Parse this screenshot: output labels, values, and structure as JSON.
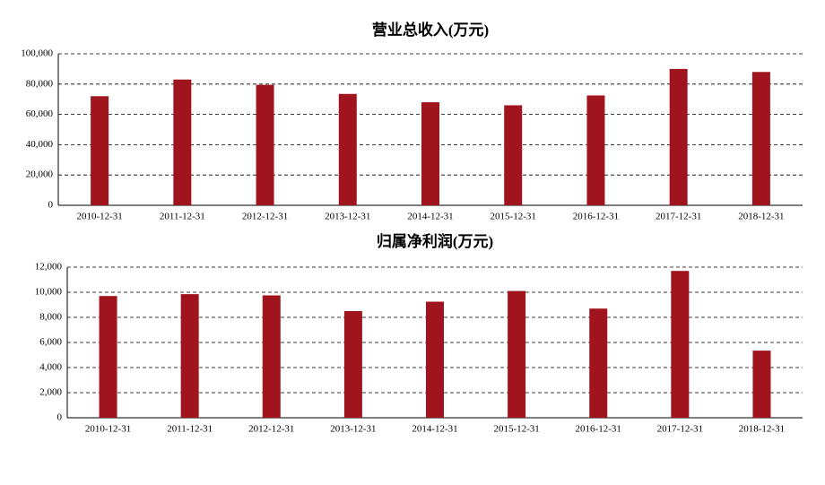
{
  "chart_data": [
    {
      "type": "bar",
      "title": "营业总收入(万元)",
      "categories": [
        "2010-12-31",
        "2011-12-31",
        "2012-12-31",
        "2013-12-31",
        "2014-12-31",
        "2015-12-31",
        "2016-12-31",
        "2017-12-31",
        "2018-12-31"
      ],
      "values": [
        72000,
        83000,
        79500,
        73500,
        68000,
        66000,
        72500,
        90000,
        88000
      ],
      "color": "#a0141e",
      "ylim": [
        0,
        100000
      ],
      "yticks": [
        0,
        {
          "value": 20000,
          "label": "20,000"
        },
        {
          "value": 40000,
          "label": "40,000"
        },
        {
          "value": 60000,
          "label": "60,000"
        },
        {
          "value": 80000,
          "label": "80,000"
        },
        {
          "value": 100000,
          "label": "100,000"
        }
      ],
      "grid": true
    },
    {
      "type": "bar",
      "title": "归属净利润(万元)",
      "categories": [
        "2010-12-31",
        "2011-12-31",
        "2012-12-31",
        "2013-12-31",
        "2014-12-31",
        "2015-12-31",
        "2016-12-31",
        "2017-12-31",
        "2018-12-31"
      ],
      "values": [
        9700,
        9850,
        9750,
        8500,
        9250,
        10100,
        8700,
        11700,
        5350
      ],
      "color": "#a0141e",
      "ylim": [
        0,
        12000
      ],
      "yticks": [
        0,
        {
          "value": 2000,
          "label": "2,000"
        },
        {
          "value": 4000,
          "label": "4,000"
        },
        {
          "value": 6000,
          "label": "6,000"
        },
        {
          "value": 8000,
          "label": "8,000"
        },
        {
          "value": 10000,
          "label": "10,000"
        },
        {
          "value": 12000,
          "label": "12,000"
        }
      ],
      "grid": true
    }
  ]
}
